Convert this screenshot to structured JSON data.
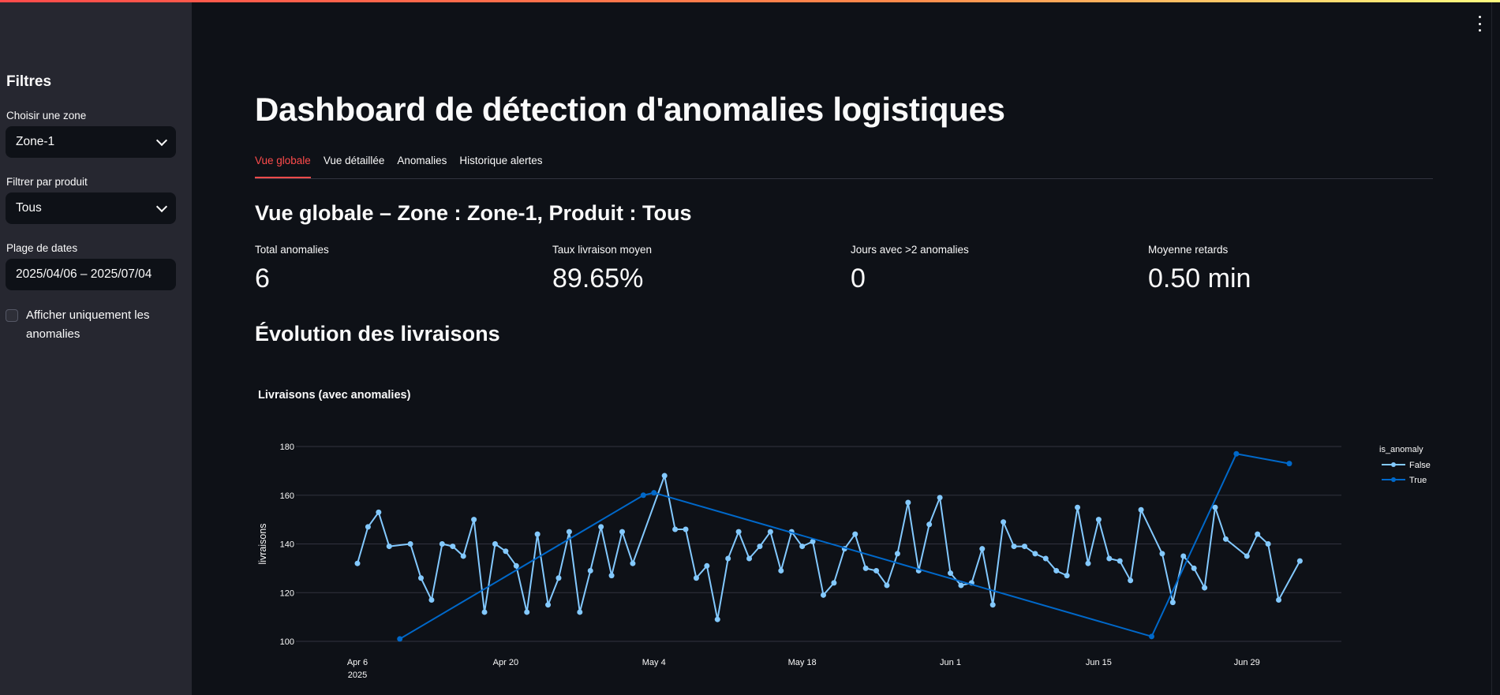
{
  "sidebar": {
    "title": "Filtres",
    "zone_label": "Choisir une zone",
    "zone_value": "Zone-1",
    "product_label": "Filtrer par produit",
    "product_value": "Tous",
    "dates_label": "Plage de dates",
    "dates_value": "2025/04/06 – 2025/07/04",
    "anomalies_only_label": "Afficher uniquement les anomalies",
    "anomalies_only_checked": false
  },
  "header": {
    "title": "Dashboard de détection d'anomalies logistiques"
  },
  "tabs": [
    {
      "label": "Vue globale",
      "active": true
    },
    {
      "label": "Vue détaillée"
    },
    {
      "label": "Anomalies"
    },
    {
      "label": "Historique alertes"
    }
  ],
  "subheader": "Vue globale – Zone : Zone-1, Produit : Tous",
  "metrics": [
    {
      "label": "Total anomalies",
      "value": "6"
    },
    {
      "label": "Taux livraison moyen",
      "value": "89.65%"
    },
    {
      "label": "Jours avec >2 anomalies",
      "value": "0"
    },
    {
      "label": "Moyenne retards",
      "value": "0.50 min"
    }
  ],
  "section_title": "Évolution des livraisons",
  "colors": {
    "accent": "#ff4b4b",
    "false_series": "#83c9ff",
    "true_series": "#0068c9"
  },
  "chart_data": {
    "type": "line",
    "title": "Livraisons (avec anomalies)",
    "ylabel": "livraisons",
    "xlabel": "",
    "ylim": [
      100,
      180
    ],
    "yticks": [
      100,
      120,
      140,
      160,
      180
    ],
    "xticks": [
      {
        "date": "2025-04-06",
        "label": "Apr 6",
        "sublabel": "2025"
      },
      {
        "date": "2025-04-20",
        "label": "Apr 20"
      },
      {
        "date": "2025-05-04",
        "label": "May 4"
      },
      {
        "date": "2025-05-18",
        "label": "May 18"
      },
      {
        "date": "2025-06-01",
        "label": "Jun 1"
      },
      {
        "date": "2025-06-15",
        "label": "Jun 15"
      },
      {
        "date": "2025-06-29",
        "label": "Jun 29"
      }
    ],
    "grid": true,
    "legend": {
      "title": "is_anomaly",
      "placement": "right"
    },
    "series": [
      {
        "name": "False",
        "color": "#83c9ff",
        "points": [
          [
            "2025-04-06",
            132
          ],
          [
            "2025-04-07",
            147
          ],
          [
            "2025-04-08",
            153
          ],
          [
            "2025-04-09",
            139
          ],
          [
            "2025-04-11",
            140
          ],
          [
            "2025-04-12",
            126
          ],
          [
            "2025-04-13",
            117
          ],
          [
            "2025-04-14",
            140
          ],
          [
            "2025-04-15",
            139
          ],
          [
            "2025-04-16",
            135
          ],
          [
            "2025-04-17",
            150
          ],
          [
            "2025-04-18",
            112
          ],
          [
            "2025-04-19",
            140
          ],
          [
            "2025-04-20",
            137
          ],
          [
            "2025-04-21",
            131
          ],
          [
            "2025-04-22",
            112
          ],
          [
            "2025-04-23",
            144
          ],
          [
            "2025-04-24",
            115
          ],
          [
            "2025-04-25",
            126
          ],
          [
            "2025-04-26",
            145
          ],
          [
            "2025-04-27",
            112
          ],
          [
            "2025-04-28",
            129
          ],
          [
            "2025-04-29",
            147
          ],
          [
            "2025-04-30",
            127
          ],
          [
            "2025-05-01",
            145
          ],
          [
            "2025-05-02",
            132
          ],
          [
            "2025-05-05",
            168
          ],
          [
            "2025-05-06",
            146
          ],
          [
            "2025-05-07",
            146
          ],
          [
            "2025-05-08",
            126
          ],
          [
            "2025-05-09",
            131
          ],
          [
            "2025-05-10",
            109
          ],
          [
            "2025-05-11",
            134
          ],
          [
            "2025-05-12",
            145
          ],
          [
            "2025-05-13",
            134
          ],
          [
            "2025-05-14",
            139
          ],
          [
            "2025-05-15",
            145
          ],
          [
            "2025-05-16",
            129
          ],
          [
            "2025-05-17",
            145
          ],
          [
            "2025-05-18",
            139
          ],
          [
            "2025-05-19",
            141
          ],
          [
            "2025-05-20",
            119
          ],
          [
            "2025-05-21",
            124
          ],
          [
            "2025-05-22",
            138
          ],
          [
            "2025-05-23",
            144
          ],
          [
            "2025-05-24",
            130
          ],
          [
            "2025-05-25",
            129
          ],
          [
            "2025-05-26",
            123
          ],
          [
            "2025-05-27",
            136
          ],
          [
            "2025-05-28",
            157
          ],
          [
            "2025-05-29",
            129
          ],
          [
            "2025-05-30",
            148
          ],
          [
            "2025-05-31",
            159
          ],
          [
            "2025-06-01",
            128
          ],
          [
            "2025-06-02",
            123
          ],
          [
            "2025-06-03",
            124
          ],
          [
            "2025-06-04",
            138
          ],
          [
            "2025-06-05",
            115
          ],
          [
            "2025-06-06",
            149
          ],
          [
            "2025-06-07",
            139
          ],
          [
            "2025-06-08",
            139
          ],
          [
            "2025-06-09",
            136
          ],
          [
            "2025-06-10",
            134
          ],
          [
            "2025-06-11",
            129
          ],
          [
            "2025-06-12",
            127
          ],
          [
            "2025-06-13",
            155
          ],
          [
            "2025-06-14",
            132
          ],
          [
            "2025-06-15",
            150
          ],
          [
            "2025-06-16",
            134
          ],
          [
            "2025-06-17",
            133
          ],
          [
            "2025-06-18",
            125
          ],
          [
            "2025-06-19",
            154
          ],
          [
            "2025-06-21",
            136
          ],
          [
            "2025-06-22",
            116
          ],
          [
            "2025-06-23",
            135
          ],
          [
            "2025-06-24",
            130
          ],
          [
            "2025-06-25",
            122
          ],
          [
            "2025-06-26",
            155
          ],
          [
            "2025-06-27",
            142
          ],
          [
            "2025-06-29",
            135
          ],
          [
            "2025-06-30",
            144
          ],
          [
            "2025-07-01",
            140
          ],
          [
            "2025-07-02",
            117
          ],
          [
            "2025-07-04",
            133
          ]
        ]
      },
      {
        "name": "True",
        "color": "#0068c9",
        "points": [
          [
            "2025-04-10",
            101
          ],
          [
            "2025-05-03",
            160
          ],
          [
            "2025-05-04",
            161
          ],
          [
            "2025-06-20",
            102
          ],
          [
            "2025-06-28",
            177
          ],
          [
            "2025-07-03",
            173
          ]
        ]
      }
    ]
  }
}
